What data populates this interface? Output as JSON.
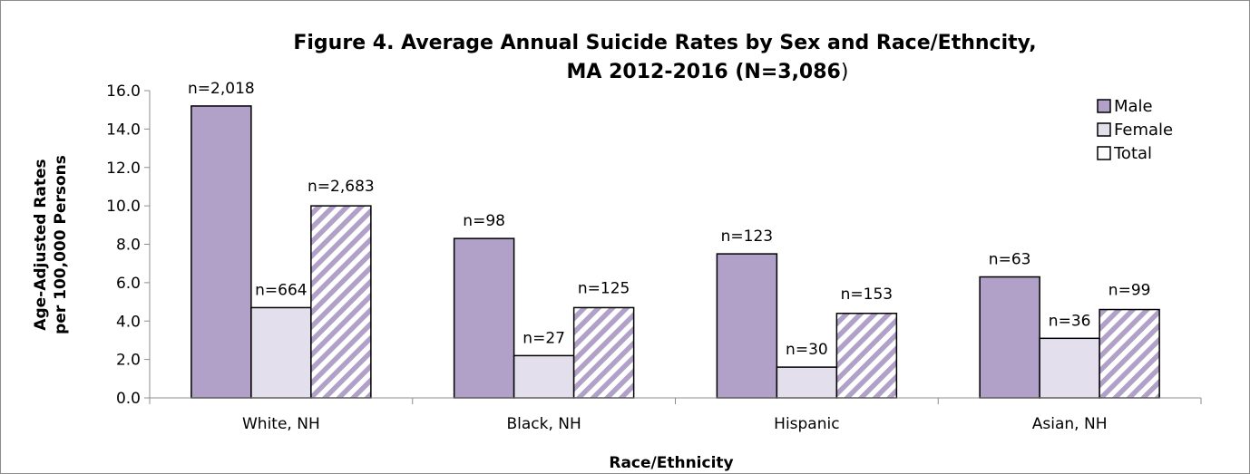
{
  "chart_data": {
    "type": "bar",
    "title_line1": "Figure 4. Average Annual Suicide Rates by Sex and Race/Ethncity,",
    "title_line2_bold": "MA 2012-2016 (N=3,086",
    "title_line2_plain": ")",
    "xlabel": "Race/Ethnicity",
    "ylabel_line1": "Age-Adjusted Rates",
    "ylabel_line2": "per 100,000 Persons",
    "ylim": [
      0,
      16
    ],
    "ytick_step": 2,
    "ytick_labels": [
      "0.0",
      "2.0",
      "4.0",
      "6.0",
      "8.0",
      "10.0",
      "12.0",
      "14.0",
      "16.0"
    ],
    "grid": false,
    "legend_position": "top-right",
    "categories": [
      "White, NH",
      "Black, NH",
      "Hispanic",
      "Asian, NH"
    ],
    "series": [
      {
        "name": "Male",
        "color": "#b1a0c7",
        "pattern": "solid",
        "values": [
          15.2,
          8.3,
          7.5,
          6.3
        ],
        "labels": [
          "n=2,018",
          "n=98",
          "n=123",
          "n=63"
        ]
      },
      {
        "name": "Female",
        "color": "#e4dfec",
        "pattern": "solid",
        "values": [
          4.7,
          2.2,
          1.6,
          3.1
        ],
        "labels": [
          "n=664",
          "n=27",
          "n=30",
          "n=36"
        ]
      },
      {
        "name": "Total",
        "color": "#b1a0c7",
        "pattern": "diagonal-stripes",
        "values": [
          10.0,
          4.7,
          4.4,
          4.6
        ],
        "labels": [
          "n=2,683",
          "n=125",
          "n=153",
          "n=99"
        ]
      }
    ]
  }
}
